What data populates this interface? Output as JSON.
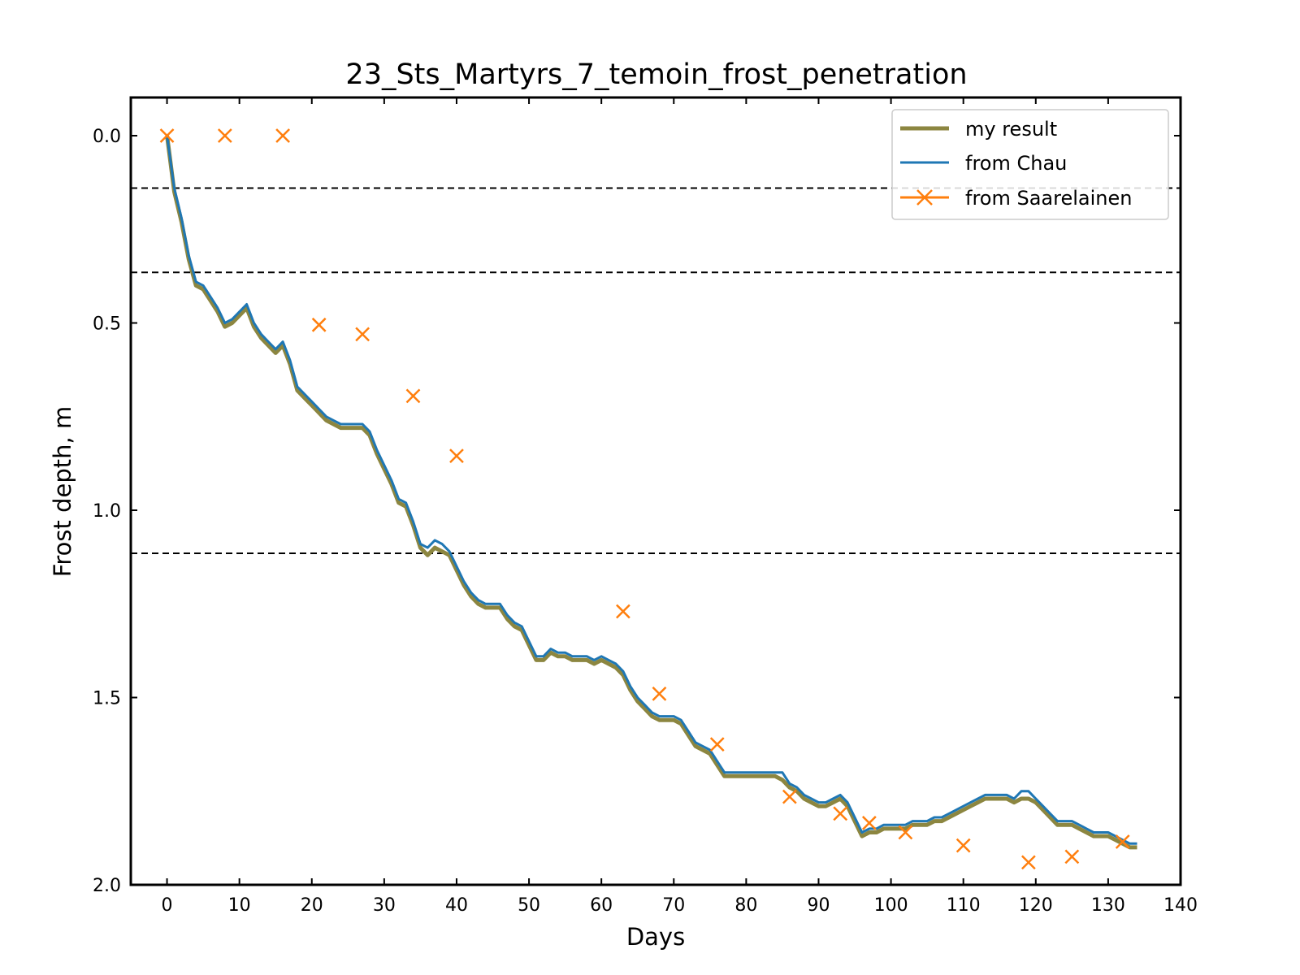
{
  "chart_data": {
    "type": "line",
    "title": "23_Sts_Martyrs_7_temoin_frost_penetration",
    "xlabel": "Days",
    "ylabel": "Frost depth, m",
    "xlim": [
      -5,
      140
    ],
    "ylim": [
      0,
      2.0
    ],
    "y_inverted": true,
    "x_ticks": [
      0,
      10,
      20,
      30,
      40,
      50,
      60,
      70,
      80,
      90,
      100,
      110,
      120,
      130,
      140
    ],
    "y_ticks": [
      0.0,
      0.5,
      1.0,
      1.5,
      2.0
    ],
    "y_tick_labels": [
      "0.0",
      "0.5",
      "1.0",
      "1.5",
      "2.0"
    ],
    "grid": false,
    "legend_position": "top-right",
    "reference_lines": [
      {
        "y": 0.14,
        "style": "dashed",
        "color": "#000000"
      },
      {
        "y": 0.365,
        "style": "dashed",
        "color": "#000000"
      },
      {
        "y": 1.115,
        "style": "dashed",
        "color": "#000000"
      }
    ],
    "series": [
      {
        "name": "my result",
        "kind": "line",
        "color": "#8c8640",
        "x": [
          0,
          1,
          2,
          3,
          4,
          5,
          6,
          7,
          8,
          9,
          10,
          11,
          12,
          13,
          14,
          15,
          16,
          17,
          18,
          19,
          20,
          21,
          22,
          23,
          24,
          25,
          26,
          27,
          28,
          29,
          30,
          31,
          32,
          33,
          34,
          35,
          36,
          37,
          38,
          39,
          40,
          41,
          42,
          43,
          44,
          45,
          46,
          47,
          48,
          49,
          50,
          51,
          52,
          53,
          54,
          55,
          56,
          57,
          58,
          59,
          60,
          61,
          62,
          63,
          64,
          65,
          66,
          67,
          68,
          69,
          70,
          71,
          72,
          73,
          74,
          75,
          76,
          77,
          78,
          79,
          80,
          81,
          82,
          83,
          84,
          85,
          86,
          87,
          88,
          89,
          90,
          91,
          92,
          93,
          94,
          95,
          96,
          97,
          98,
          99,
          100,
          101,
          102,
          103,
          104,
          105,
          106,
          107,
          108,
          109,
          110,
          111,
          112,
          113,
          114,
          115,
          116,
          117,
          118,
          119,
          120,
          121,
          122,
          123,
          124,
          125,
          126,
          127,
          128,
          129,
          130,
          131,
          132,
          133,
          134
        ],
        "y": [
          0.0,
          0.15,
          0.23,
          0.33,
          0.4,
          0.41,
          0.44,
          0.47,
          0.51,
          0.5,
          0.48,
          0.46,
          0.51,
          0.54,
          0.56,
          0.58,
          0.56,
          0.61,
          0.68,
          0.7,
          0.72,
          0.74,
          0.76,
          0.77,
          0.78,
          0.78,
          0.78,
          0.78,
          0.8,
          0.85,
          0.89,
          0.93,
          0.98,
          0.99,
          1.04,
          1.1,
          1.12,
          1.1,
          1.11,
          1.12,
          1.16,
          1.2,
          1.23,
          1.25,
          1.26,
          1.26,
          1.26,
          1.29,
          1.31,
          1.32,
          1.36,
          1.4,
          1.4,
          1.38,
          1.39,
          1.39,
          1.4,
          1.4,
          1.4,
          1.41,
          1.4,
          1.41,
          1.42,
          1.44,
          1.48,
          1.51,
          1.53,
          1.55,
          1.56,
          1.56,
          1.56,
          1.57,
          1.6,
          1.63,
          1.64,
          1.65,
          1.68,
          1.71,
          1.71,
          1.71,
          1.71,
          1.71,
          1.71,
          1.71,
          1.71,
          1.72,
          1.74,
          1.75,
          1.77,
          1.78,
          1.79,
          1.79,
          1.78,
          1.77,
          1.79,
          1.83,
          1.87,
          1.86,
          1.86,
          1.85,
          1.85,
          1.85,
          1.85,
          1.84,
          1.84,
          1.84,
          1.83,
          1.83,
          1.82,
          1.81,
          1.8,
          1.79,
          1.78,
          1.77,
          1.77,
          1.77,
          1.77,
          1.78,
          1.77,
          1.77,
          1.78,
          1.8,
          1.82,
          1.84,
          1.84,
          1.84,
          1.85,
          1.86,
          1.87,
          1.87,
          1.87,
          1.88,
          1.89,
          1.9,
          1.9
        ]
      },
      {
        "name": "from Chau",
        "kind": "line",
        "color": "#1f77b4",
        "x": [
          0,
          1,
          2,
          3,
          4,
          5,
          6,
          7,
          8,
          9,
          10,
          11,
          12,
          13,
          14,
          15,
          16,
          17,
          18,
          19,
          20,
          21,
          22,
          23,
          24,
          25,
          26,
          27,
          28,
          29,
          30,
          31,
          32,
          33,
          34,
          35,
          36,
          37,
          38,
          39,
          40,
          41,
          42,
          43,
          44,
          45,
          46,
          47,
          48,
          49,
          50,
          51,
          52,
          53,
          54,
          55,
          56,
          57,
          58,
          59,
          60,
          61,
          62,
          63,
          64,
          65,
          66,
          67,
          68,
          69,
          70,
          71,
          72,
          73,
          74,
          75,
          76,
          77,
          78,
          79,
          80,
          81,
          82,
          83,
          84,
          85,
          86,
          87,
          88,
          89,
          90,
          91,
          92,
          93,
          94,
          95,
          96,
          97,
          98,
          99,
          100,
          101,
          102,
          103,
          104,
          105,
          106,
          107,
          108,
          109,
          110,
          111,
          112,
          113,
          114,
          115,
          116,
          117,
          118,
          119,
          120,
          121,
          122,
          123,
          124,
          125,
          126,
          127,
          128,
          129,
          130,
          131,
          132,
          133,
          134
        ],
        "y": [
          0.0,
          0.14,
          0.22,
          0.32,
          0.39,
          0.4,
          0.43,
          0.46,
          0.5,
          0.49,
          0.47,
          0.45,
          0.5,
          0.53,
          0.55,
          0.57,
          0.55,
          0.6,
          0.67,
          0.69,
          0.71,
          0.73,
          0.75,
          0.76,
          0.77,
          0.77,
          0.77,
          0.77,
          0.79,
          0.84,
          0.88,
          0.92,
          0.97,
          0.98,
          1.03,
          1.09,
          1.1,
          1.08,
          1.09,
          1.11,
          1.15,
          1.19,
          1.22,
          1.24,
          1.25,
          1.25,
          1.25,
          1.28,
          1.3,
          1.31,
          1.35,
          1.39,
          1.39,
          1.37,
          1.38,
          1.38,
          1.39,
          1.39,
          1.39,
          1.4,
          1.39,
          1.4,
          1.41,
          1.43,
          1.47,
          1.5,
          1.52,
          1.54,
          1.55,
          1.55,
          1.55,
          1.56,
          1.59,
          1.62,
          1.63,
          1.64,
          1.67,
          1.7,
          1.7,
          1.7,
          1.7,
          1.7,
          1.7,
          1.7,
          1.7,
          1.7,
          1.73,
          1.74,
          1.76,
          1.77,
          1.78,
          1.78,
          1.77,
          1.76,
          1.78,
          1.82,
          1.86,
          1.85,
          1.85,
          1.84,
          1.84,
          1.84,
          1.84,
          1.83,
          1.83,
          1.83,
          1.82,
          1.82,
          1.81,
          1.8,
          1.79,
          1.78,
          1.77,
          1.76,
          1.76,
          1.76,
          1.76,
          1.77,
          1.75,
          1.75,
          1.77,
          1.79,
          1.81,
          1.83,
          1.83,
          1.83,
          1.84,
          1.85,
          1.86,
          1.86,
          1.86,
          1.87,
          1.88,
          1.89,
          1.89
        ]
      },
      {
        "name": "from Saarelainen",
        "kind": "marker",
        "marker": "x",
        "color": "#ff7f0e",
        "x": [
          0,
          8,
          16,
          21,
          27,
          34,
          40,
          63,
          68,
          76,
          86,
          93,
          97,
          102,
          110,
          119,
          125,
          132
        ],
        "y": [
          0.0,
          0.0,
          0.0,
          0.505,
          0.53,
          0.695,
          0.855,
          1.27,
          1.49,
          1.625,
          1.765,
          1.81,
          1.835,
          1.86,
          1.895,
          1.94,
          1.925,
          1.885
        ]
      }
    ]
  }
}
